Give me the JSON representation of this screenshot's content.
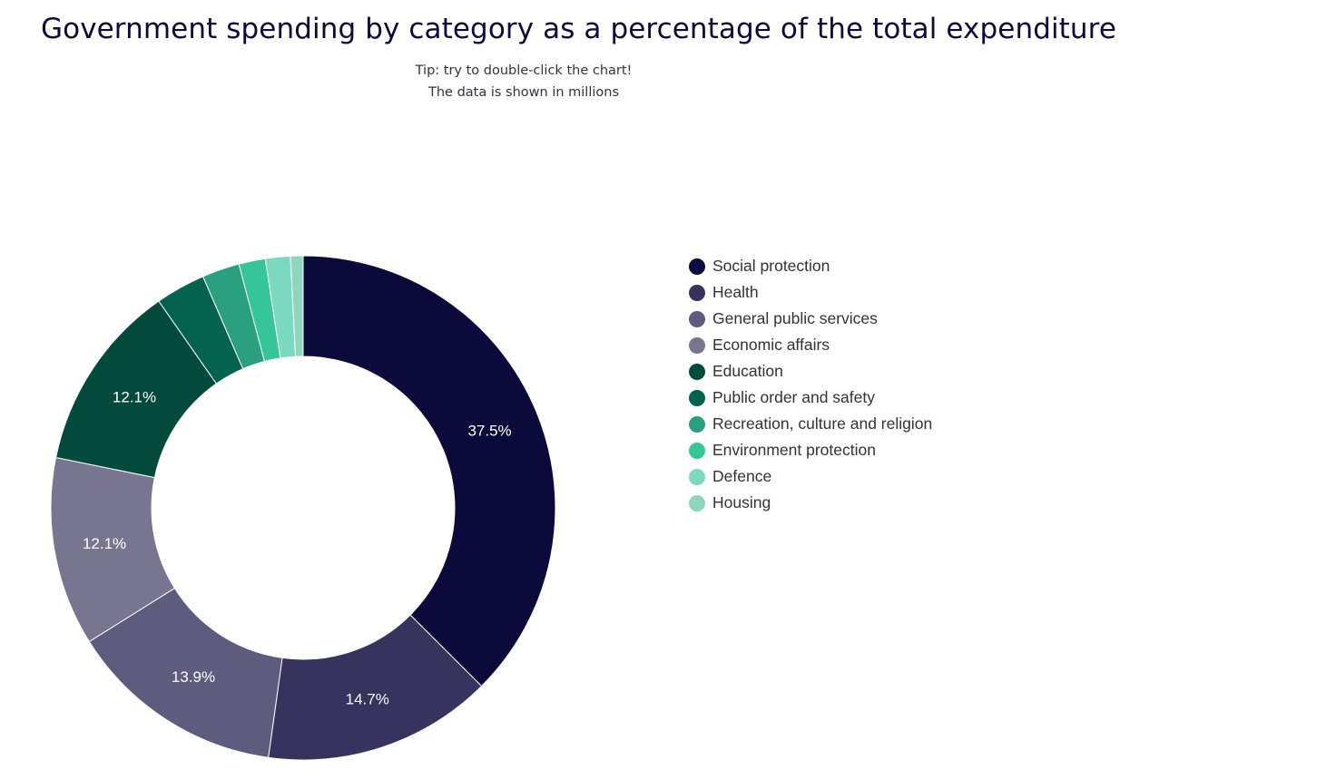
{
  "title": "Government spending by category as a percentage of the total expenditure",
  "subtitle": {
    "tip": "Tip: try to double-click the chart!",
    "note": "The data is shown in millions"
  },
  "chart_data": {
    "type": "pie",
    "donut": true,
    "title": "Government spending by category as a percentage of the total expenditure",
    "legend_position": "right",
    "categories": [
      "Social protection",
      "Health",
      "General public services",
      "Economic affairs",
      "Education",
      "Public order and safety",
      "Recreation, culture and religion",
      "Environment protection",
      "Defence",
      "Housing"
    ],
    "values": [
      37.5,
      14.7,
      13.9,
      12.1,
      12.1,
      3.2,
      2.4,
      1.7,
      1.6,
      0.8
    ],
    "data_labels": [
      "37.5%",
      "14.7%",
      "13.9%",
      "12.1%",
      "12.1%",
      "",
      "",
      "",
      "",
      ""
    ],
    "colors": [
      "#0b0a3a",
      "#36335e",
      "#5d5b7e",
      "#77758f",
      "#034a3c",
      "#03634e",
      "#2ba07f",
      "#36c597",
      "#7bd9bf",
      "#8fd6bd"
    ]
  }
}
